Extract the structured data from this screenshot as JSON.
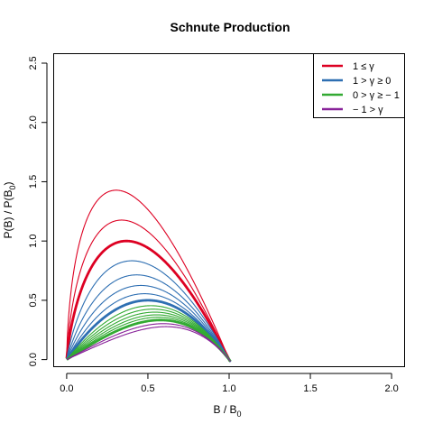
{
  "chart_data": {
    "type": "line",
    "title": "Schnute Production",
    "xlabel": {
      "main": "B / B",
      "sub": "0"
    },
    "ylabel": {
      "main": "P(B) / P(B",
      "sub": "0",
      "tail": ")"
    },
    "xlim": [
      -0.08,
      2.08
    ],
    "ylim": [
      -0.06,
      2.58
    ],
    "x_ticks": [
      0.0,
      0.5,
      1.0,
      1.5,
      2.0
    ],
    "x_tick_labels": [
      "0.0",
      "0.5",
      "1.0",
      "1.5",
      "2.0"
    ],
    "y_ticks": [
      0.0,
      0.5,
      1.0,
      1.5,
      2.0,
      2.5
    ],
    "y_tick_labels": [
      "0.0",
      "0.5",
      "1.0",
      "1.5",
      "2.0",
      "2.5"
    ],
    "grid": false,
    "legend_position": "top-right",
    "legend": [
      {
        "label": "1 ≤ γ",
        "color": "#dd0022"
      },
      {
        "label": "1 > γ ≥ 0",
        "color": "#2e6fb2"
      },
      {
        "label": "0 > γ ≥ − 1",
        "color": "#33aa33"
      },
      {
        "label": "− 1 > γ",
        "color": "#882299"
      }
    ],
    "series": [
      {
        "gamma": 1.3,
        "group": "red",
        "bold": false,
        "color": "#dd0022"
      },
      {
        "gamma": 1.15,
        "group": "red",
        "bold": false,
        "color": "#dd0022"
      },
      {
        "gamma": 1.0,
        "group": "red",
        "bold": true,
        "color": "#dd0022"
      },
      {
        "gamma": 0.8,
        "group": "blue",
        "bold": false,
        "color": "#2e6fb2"
      },
      {
        "gamma": 0.6,
        "group": "blue",
        "bold": false,
        "color": "#2e6fb2"
      },
      {
        "gamma": 0.4,
        "group": "blue",
        "bold": false,
        "color": "#2e6fb2"
      },
      {
        "gamma": 0.2,
        "group": "blue",
        "bold": false,
        "color": "#2e6fb2"
      },
      {
        "gamma": 0.0,
        "group": "blue",
        "bold": true,
        "color": "#2e6fb2"
      },
      {
        "gamma": -0.2,
        "group": "green",
        "bold": false,
        "color": "#33aa33"
      },
      {
        "gamma": -0.35,
        "group": "green",
        "bold": false,
        "color": "#33aa33"
      },
      {
        "gamma": -0.5,
        "group": "green",
        "bold": false,
        "color": "#33aa33"
      },
      {
        "gamma": -0.65,
        "group": "green",
        "bold": false,
        "color": "#33aa33"
      },
      {
        "gamma": -0.8,
        "group": "green",
        "bold": false,
        "color": "#33aa33"
      },
      {
        "gamma": -1.0,
        "group": "green",
        "bold": true,
        "color": "#33aa33"
      },
      {
        "gamma": -1.3,
        "group": "purple",
        "bold": false,
        "color": "#882299"
      },
      {
        "gamma": -1.6,
        "group": "purple",
        "bold": false,
        "color": "#882299"
      }
    ]
  }
}
